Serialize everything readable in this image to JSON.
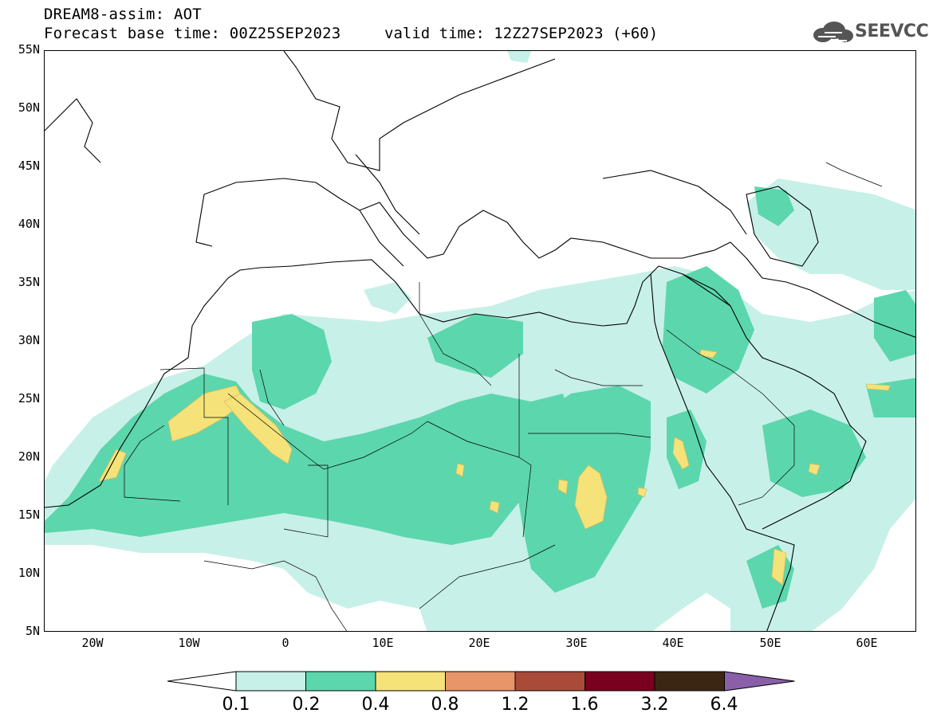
{
  "header": {
    "line1": "DREAM8-assim: AOT",
    "line2": "Forecast base time: 00Z25SEP2023",
    "valid": "valid time: 12Z27SEP2023 (+60)",
    "logo_text": "SEEVCCC",
    "logo_icon": "cloud-icon"
  },
  "map": {
    "lat_range": [
      5,
      55
    ],
    "lon_range": [
      -25,
      65
    ],
    "lat_labels": [
      "55N",
      "50N",
      "45N",
      "40N",
      "35N",
      "30N",
      "25N",
      "20N",
      "15N",
      "10N",
      "5N"
    ],
    "lon_labels": [
      "20W",
      "10W",
      "0",
      "10E",
      "20E",
      "30E",
      "40E",
      "50E",
      "60E"
    ]
  },
  "colorbar": {
    "labels": [
      "0.1",
      "0.2",
      "0.4",
      "0.8",
      "1.2",
      "1.6",
      "3.2",
      "6.4"
    ],
    "colors": [
      "#ffffff",
      "#c7f0e8",
      "#5cd6ad",
      "#f5e37a",
      "#e8956a",
      "#aa4b3a",
      "#7a0020",
      "#3b2614",
      "#8a5fa8"
    ]
  },
  "field_colors": {
    "low": "#c7f0e8",
    "mid": "#5cd6ad",
    "high": "#f5e37a",
    "coast": "#000000"
  }
}
